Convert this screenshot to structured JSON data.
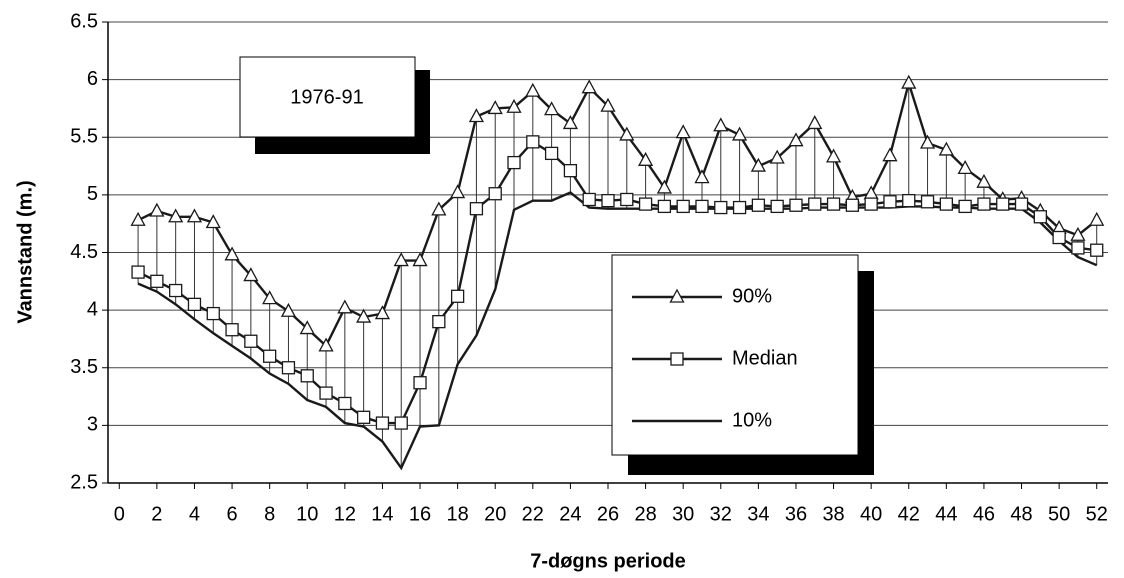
{
  "chart_data": {
    "type": "line",
    "y_label": "Vannstand (m.)",
    "x_label": "7-døgns periode",
    "annotation": "1976-91",
    "x": [
      1,
      2,
      3,
      4,
      5,
      6,
      7,
      8,
      9,
      10,
      11,
      12,
      13,
      14,
      15,
      16,
      17,
      18,
      19,
      20,
      21,
      22,
      23,
      24,
      25,
      26,
      27,
      28,
      29,
      30,
      31,
      32,
      33,
      34,
      35,
      36,
      37,
      38,
      39,
      40,
      41,
      42,
      43,
      44,
      45,
      46,
      47,
      48,
      49,
      50,
      51,
      52
    ],
    "series": [
      {
        "name": "90%",
        "color": "#1a1a1a",
        "marker": "triangle",
        "values": [
          4.78,
          4.86,
          4.81,
          4.81,
          4.76,
          4.48,
          4.3,
          4.1,
          3.99,
          3.84,
          3.69,
          4.02,
          3.94,
          3.97,
          4.43,
          4.43,
          4.87,
          5.02,
          5.68,
          5.75,
          5.76,
          5.9,
          5.74,
          5.62,
          5.93,
          5.77,
          5.52,
          5.3,
          5.06,
          5.54,
          5.15,
          5.6,
          5.52,
          5.25,
          5.32,
          5.47,
          5.62,
          5.33,
          4.98,
          5.01,
          5.34,
          5.97,
          5.45,
          5.39,
          5.23,
          5.11,
          4.96,
          4.97,
          4.86,
          4.71,
          4.65,
          4.78
        ]
      },
      {
        "name": "Median",
        "color": "#1a1a1a",
        "marker": "square",
        "values": [
          4.33,
          4.25,
          4.17,
          4.05,
          3.97,
          3.83,
          3.73,
          3.6,
          3.5,
          3.43,
          3.28,
          3.19,
          3.07,
          3.02,
          3.02,
          3.37,
          3.9,
          4.12,
          4.88,
          5.01,
          5.28,
          5.46,
          5.36,
          5.21,
          4.96,
          4.95,
          4.96,
          4.92,
          4.9,
          4.9,
          4.9,
          4.89,
          4.89,
          4.91,
          4.9,
          4.91,
          4.92,
          4.92,
          4.91,
          4.92,
          4.94,
          4.95,
          4.94,
          4.92,
          4.9,
          4.92,
          4.92,
          4.92,
          4.81,
          4.63,
          4.54,
          4.52
        ]
      },
      {
        "name": "10%",
        "color": "#1a1a1a",
        "marker": "none",
        "values": [
          4.23,
          4.16,
          4.05,
          3.92,
          3.8,
          3.69,
          3.58,
          3.45,
          3.36,
          3.22,
          3.16,
          3.02,
          2.99,
          2.86,
          2.63,
          2.99,
          3.0,
          3.53,
          3.78,
          4.18,
          4.87,
          4.95,
          4.95,
          5.02,
          4.89,
          4.88,
          4.88,
          4.88,
          4.88,
          4.88,
          4.88,
          4.88,
          4.88,
          4.88,
          4.88,
          4.88,
          4.89,
          4.89,
          4.89,
          4.89,
          4.89,
          4.9,
          4.9,
          4.89,
          4.89,
          4.88,
          4.88,
          4.88,
          4.76,
          4.6,
          4.46,
          4.39
        ]
      }
    ],
    "high_low_lines": true,
    "xlim": [
      -0.6,
      52.6
    ],
    "xticks": [
      0,
      2,
      4,
      6,
      8,
      10,
      12,
      14,
      16,
      18,
      20,
      22,
      24,
      26,
      28,
      30,
      32,
      34,
      36,
      38,
      40,
      42,
      44,
      46,
      48,
      50,
      52
    ],
    "ylim": [
      2.5,
      6.5
    ],
    "yticks": [
      2.5,
      3,
      3.5,
      4,
      4.5,
      5,
      5.5,
      6,
      6.5
    ],
    "grid": true,
    "legend": "center-right"
  }
}
